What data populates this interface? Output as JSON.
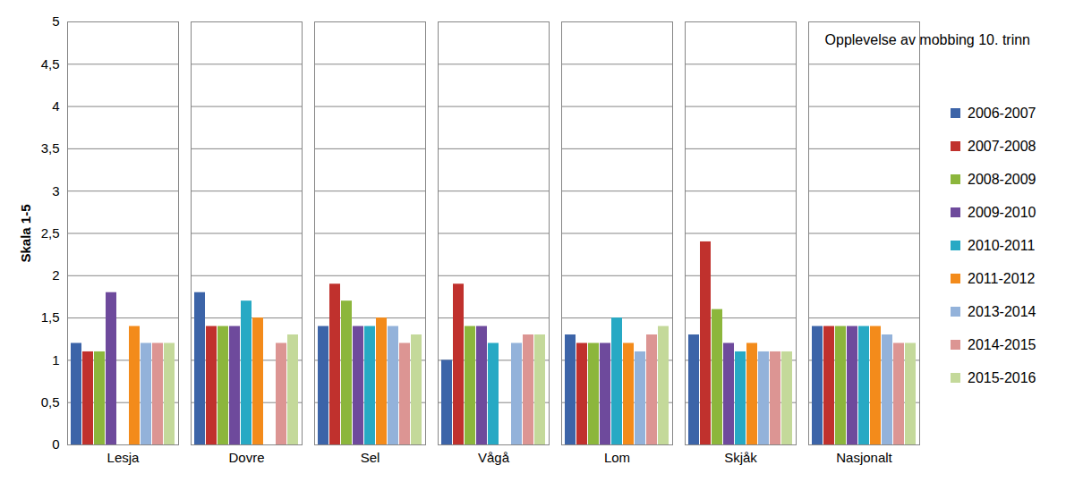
{
  "chart_data": {
    "type": "bar",
    "title": "Opplevelse av mobbing 10. trinn",
    "y_label": "Skala 1-5",
    "categories": [
      "Lesja",
      "Dovre",
      "Sel",
      "Vågå",
      "Lom",
      "Skjåk",
      "Nasjonalt"
    ],
    "series": [
      {
        "name": "2006-2007",
        "color": "#3c64a8",
        "values": [
          1.2,
          1.8,
          1.4,
          1.0,
          1.3,
          1.3,
          1.4
        ]
      },
      {
        "name": "2007-2008",
        "color": "#c0312d",
        "values": [
          1.1,
          1.4,
          1.9,
          1.9,
          1.2,
          2.4,
          1.4
        ]
      },
      {
        "name": "2008-2009",
        "color": "#8cb63c",
        "values": [
          1.1,
          1.4,
          1.7,
          1.4,
          1.2,
          1.6,
          1.4
        ]
      },
      {
        "name": "2009-2010",
        "color": "#6e4a9c",
        "values": [
          1.8,
          1.4,
          1.4,
          1.4,
          1.2,
          1.2,
          1.4
        ]
      },
      {
        "name": "2010-2011",
        "color": "#27a9c4",
        "values": [
          null,
          1.7,
          1.4,
          1.2,
          1.5,
          1.1,
          1.4
        ]
      },
      {
        "name": "2011-2012",
        "color": "#f38b1b",
        "values": [
          1.4,
          1.5,
          1.5,
          null,
          1.2,
          1.2,
          1.4
        ]
      },
      {
        "name": "2013-2014",
        "color": "#93b2da",
        "values": [
          1.2,
          null,
          1.4,
          1.2,
          1.1,
          1.1,
          1.3
        ]
      },
      {
        "name": "2014-2015",
        "color": "#dc9593",
        "values": [
          1.2,
          1.2,
          1.2,
          1.3,
          1.3,
          1.1,
          1.2
        ]
      },
      {
        "name": "2015-2016",
        "color": "#c4d99a",
        "values": [
          1.2,
          1.3,
          1.3,
          1.3,
          1.4,
          1.1,
          1.2
        ]
      }
    ],
    "ylim": [
      0,
      5
    ],
    "yticks": [
      0,
      {
        "value": 0.5,
        "label": "0,5"
      },
      1,
      {
        "value": 1.5,
        "label": "1,5"
      },
      2,
      {
        "value": 2.5,
        "label": "2,5"
      },
      3,
      {
        "value": 3.5,
        "label": "3,5"
      },
      4,
      {
        "value": 4.5,
        "label": "4,5"
      },
      5
    ],
    "grid": true,
    "legend": "right"
  }
}
